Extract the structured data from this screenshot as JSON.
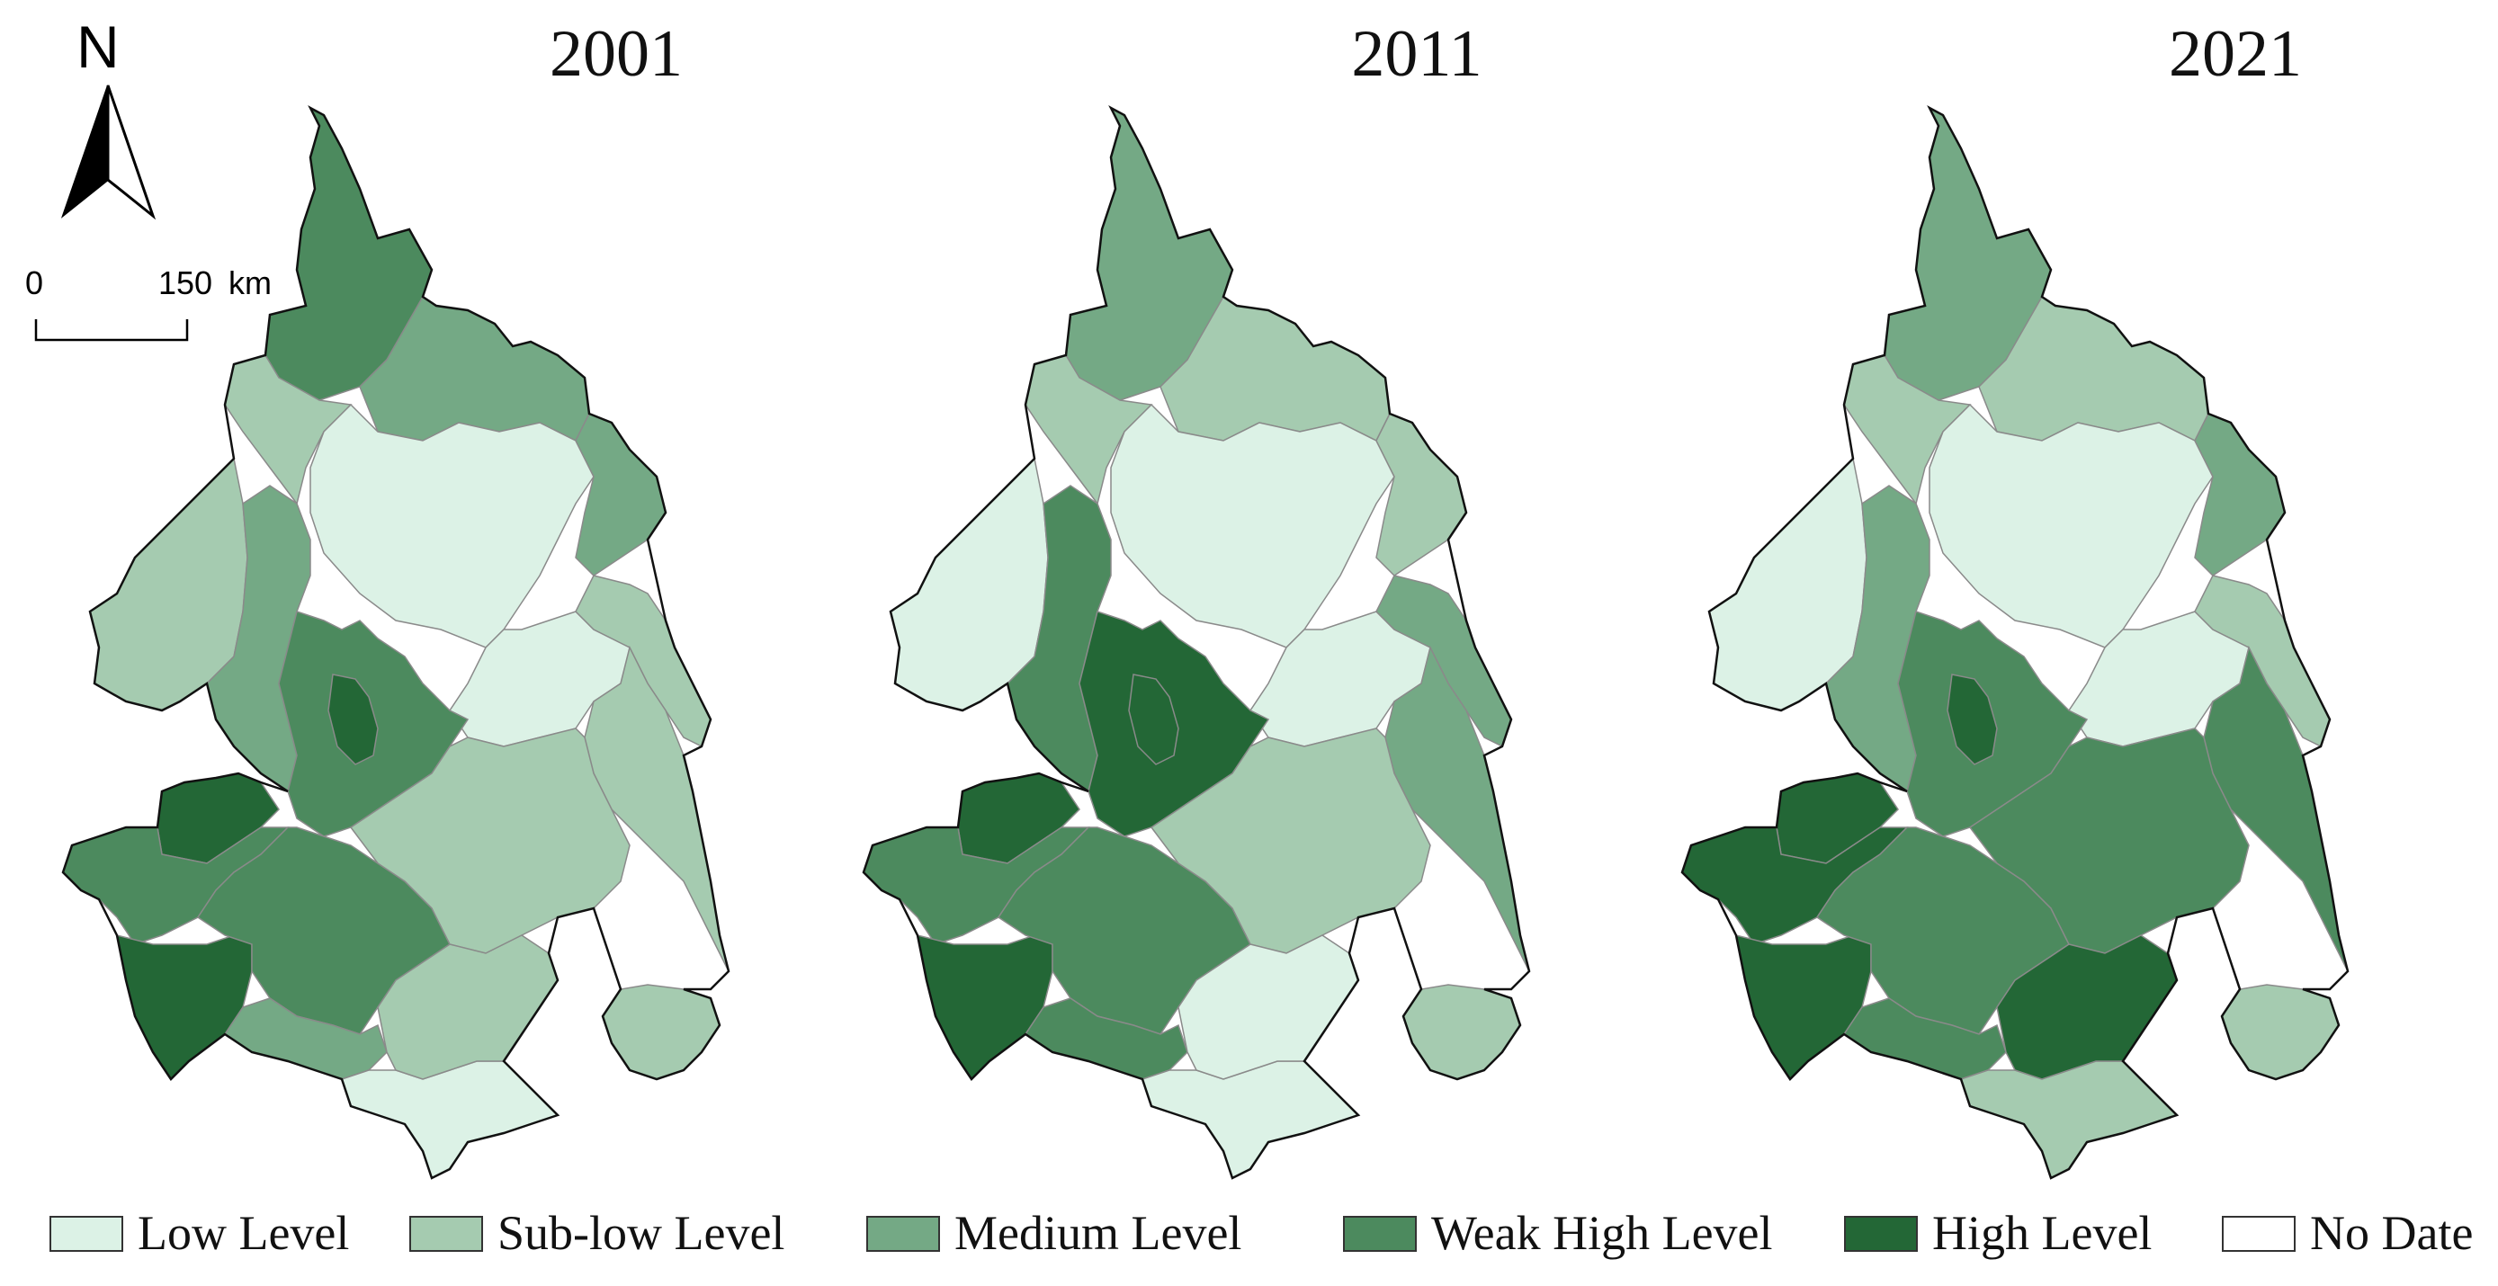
{
  "compass": {
    "label": "N"
  },
  "scale_bar": {
    "start_label": "0",
    "end_label": "150",
    "unit": "km"
  },
  "colors": {
    "low": "#dcf2e6",
    "sublow": "#a5cbb0",
    "medium": "#74a985",
    "weakhigh": "#4c8a5e",
    "high": "#236736",
    "nodata": "#ffffff",
    "outline": "#111111"
  },
  "legend": [
    {
      "label": "Low Level",
      "class": "low"
    },
    {
      "label": "Sub-low Level",
      "class": "sublow"
    },
    {
      "label": "Medium Level",
      "class": "medium"
    },
    {
      "label": "Weak High Level",
      "class": "weakhigh"
    },
    {
      "label": "High Level",
      "class": "high"
    },
    {
      "label": "No Date",
      "class": "nodata"
    }
  ],
  "maps": [
    {
      "year": "2001",
      "regions": {
        "north_tip": "weakhigh",
        "north_west": "sublow",
        "north_east": "medium",
        "north_center": "low",
        "northeast_strip": "medium",
        "center_east": "low",
        "east": "sublow",
        "east_edge": "sublow",
        "west_wing": "sublow",
        "west_mid": "medium",
        "center_core": "weakhigh",
        "core_city": "high",
        "southwest_top": "high",
        "southwest_mid": "weakhigh",
        "southwest_bottom": "high",
        "south_center": "weakhigh",
        "south_low": "medium",
        "south_east": "sublow",
        "south_tip": "low",
        "southeast_blob": "sublow",
        "southeast_inner": "sublow"
      }
    },
    {
      "year": "2011",
      "regions": {
        "north_tip": "medium",
        "north_west": "sublow",
        "north_east": "sublow",
        "north_center": "low",
        "northeast_strip": "sublow",
        "center_east": "low",
        "east": "medium",
        "east_edge": "medium",
        "west_wing": "low",
        "west_mid": "weakhigh",
        "center_core": "high",
        "core_city": "high",
        "southwest_top": "high",
        "southwest_mid": "weakhigh",
        "southwest_bottom": "high",
        "south_center": "weakhigh",
        "south_low": "weakhigh",
        "south_east": "sublow",
        "south_tip": "low",
        "southeast_blob": "sublow",
        "southeast_inner": "low"
      }
    },
    {
      "year": "2021",
      "regions": {
        "north_tip": "medium",
        "north_west": "sublow",
        "north_east": "sublow",
        "north_center": "low",
        "northeast_strip": "medium",
        "center_east": "low",
        "east": "sublow",
        "east_edge": "weakhigh",
        "west_wing": "low",
        "west_mid": "medium",
        "center_core": "weakhigh",
        "core_city": "high",
        "southwest_top": "high",
        "southwest_mid": "high",
        "southwest_bottom": "high",
        "south_center": "weakhigh",
        "south_low": "weakhigh",
        "south_east": "weakhigh",
        "south_tip": "sublow",
        "southeast_blob": "sublow",
        "southeast_inner": "high"
      }
    }
  ]
}
